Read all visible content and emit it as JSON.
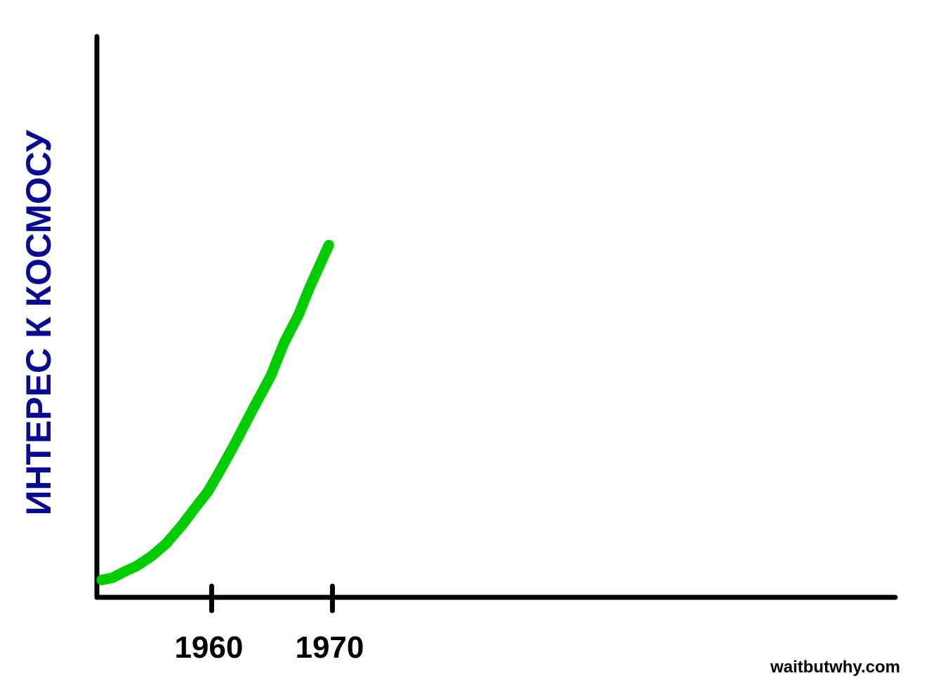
{
  "chart_data": {
    "type": "line",
    "ylabel": "ИНТЕРЕС К КОСМОСУ",
    "source": "waitbutwhy.com",
    "x": [
      1950.9,
      1951.8,
      1952.7,
      1953.8,
      1955.0,
      1956.2,
      1957.6,
      1958.5,
      1959.7,
      1960.8,
      1962.0,
      1963.4,
      1964.9,
      1966.0,
      1967.2,
      1968.1,
      1969.7
    ],
    "values": [
      3.1,
      3.5,
      4.5,
      5.6,
      7.3,
      9.5,
      13.0,
      15.6,
      18.9,
      23.0,
      27.7,
      33.5,
      39.5,
      45.4,
      50.4,
      55.2,
      62.8
    ],
    "color": "#00cc00",
    "xlim": [
      1950.5,
      2016.6
    ],
    "xticks": [
      1960,
      1970
    ],
    "ylim": [
      0,
      100
    ]
  }
}
